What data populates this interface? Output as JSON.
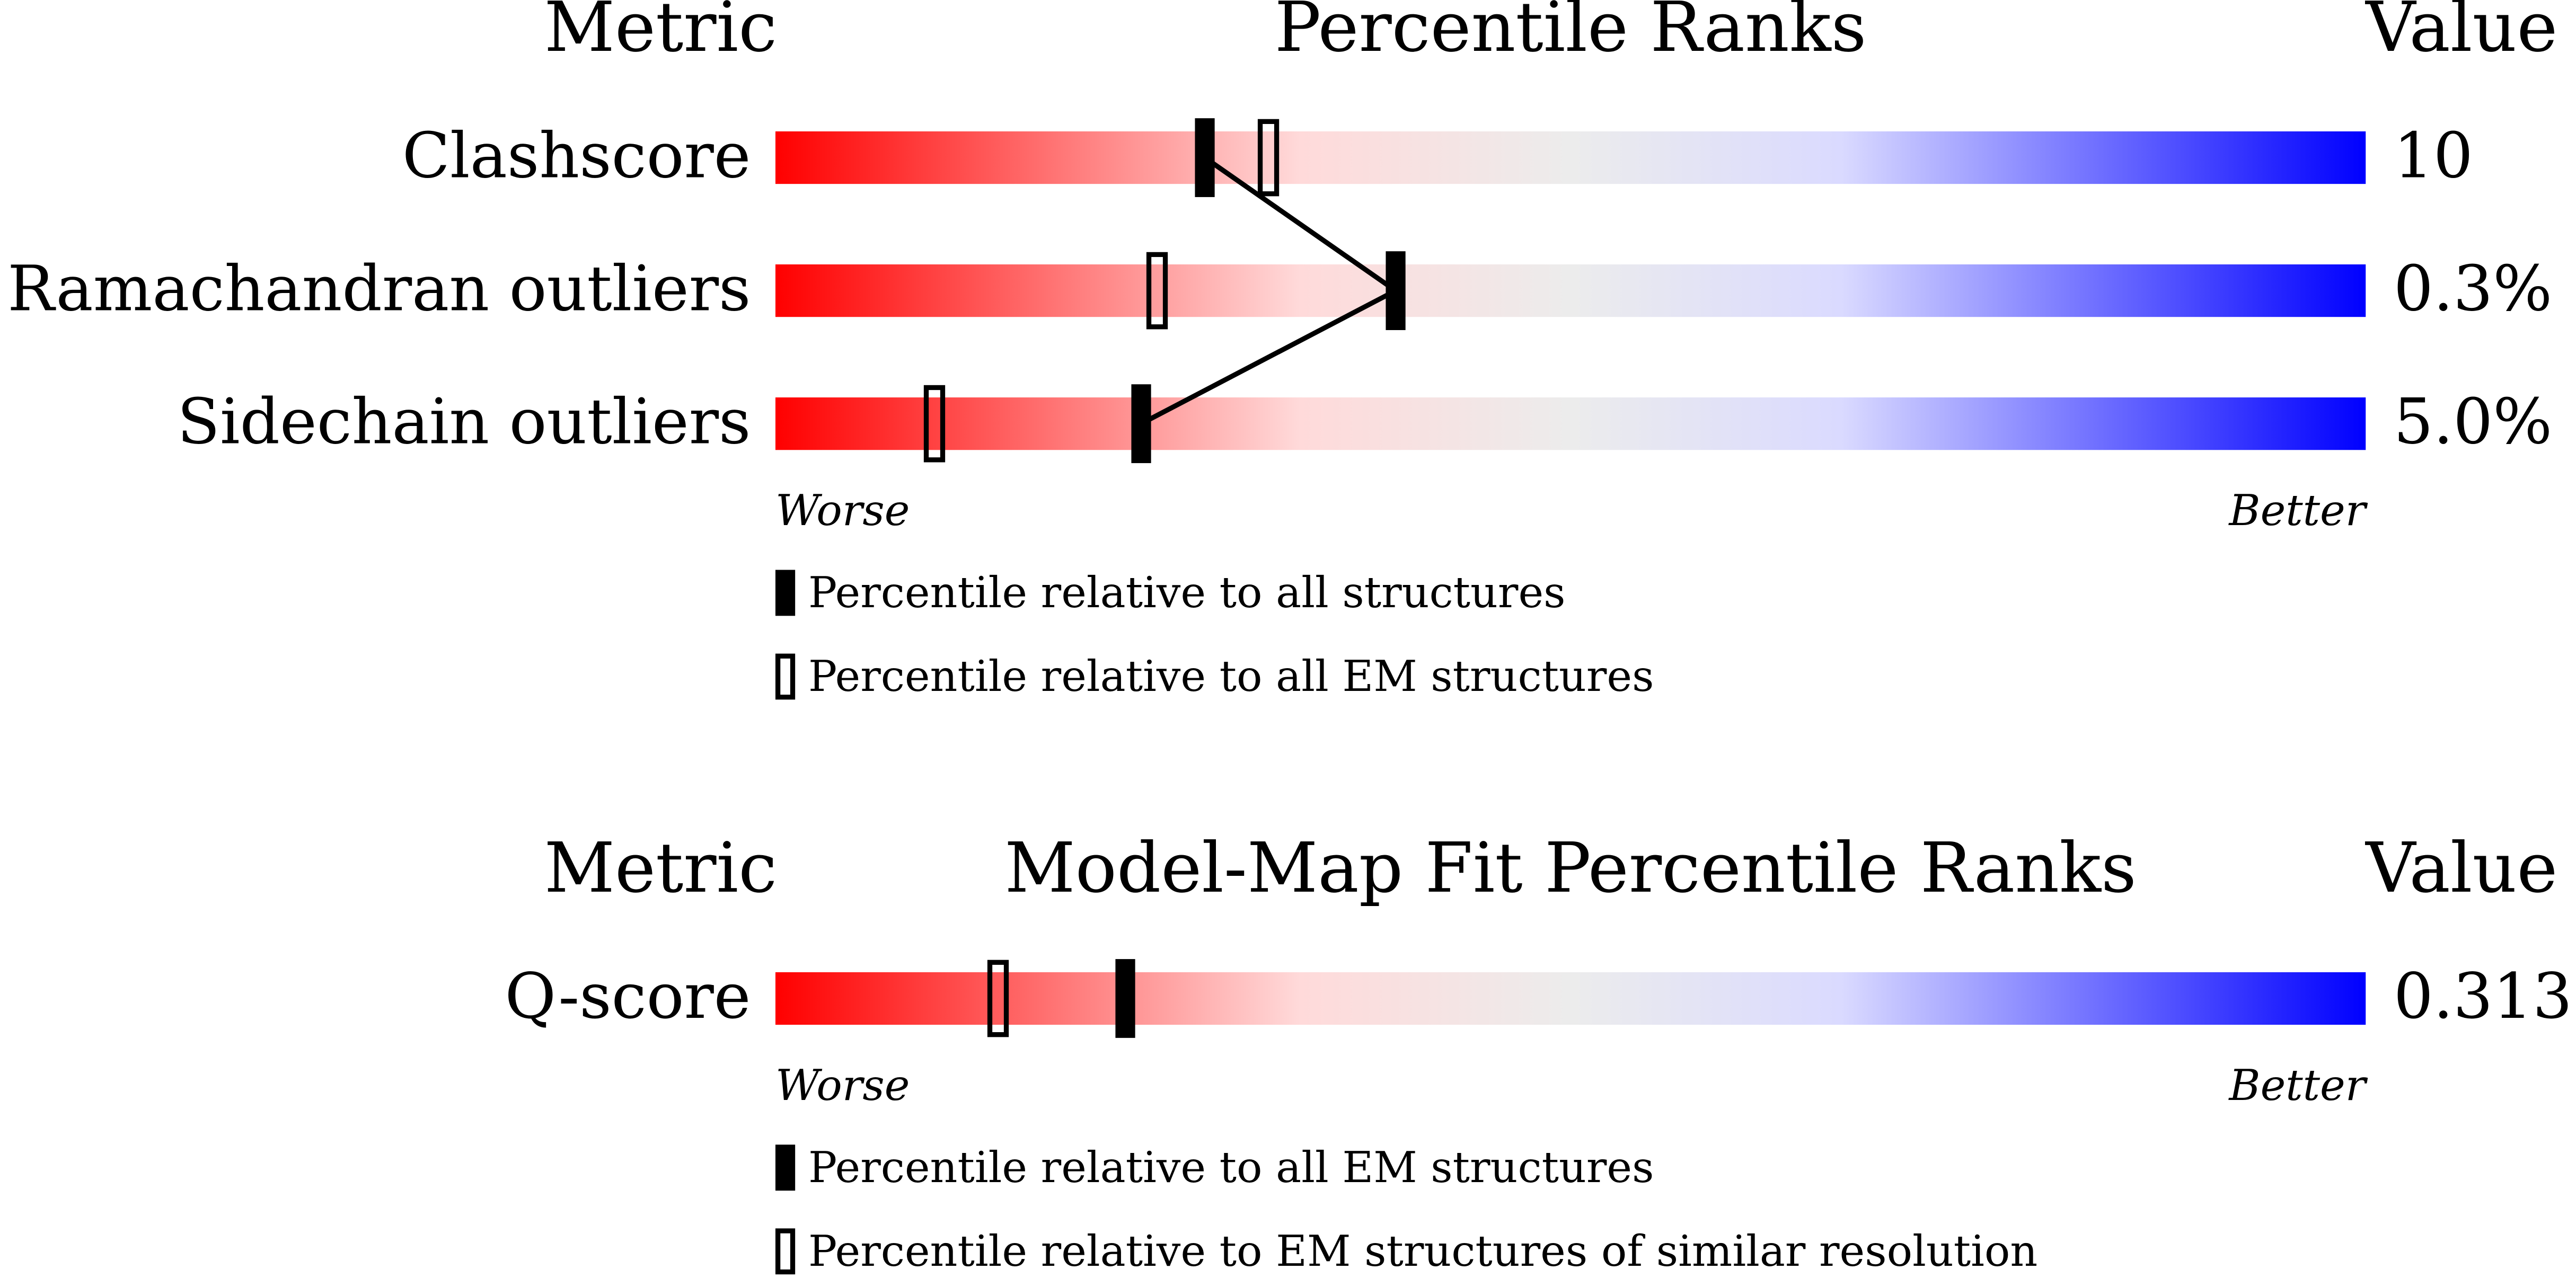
{
  "chart_data": [
    {
      "type": "percentile",
      "title_left": "Metric",
      "title": "Percentile Ranks",
      "title_right": "Value",
      "categories": [
        "Clashscore",
        "Ramachandran outliers",
        "Sidechain outliers"
      ],
      "value_labels": [
        "10",
        "0.3%",
        "5.0%"
      ],
      "xlim": [
        0,
        100
      ],
      "low_label": "Worse",
      "high_label": "Better",
      "series": [
        {
          "name": "Percentile relative to all structures",
          "style": "filled",
          "connected": true,
          "values": [
            27,
            39,
            23
          ]
        },
        {
          "name": "Percentile relative to all EM structures",
          "style": "open",
          "values": [
            31,
            24,
            10
          ]
        }
      ]
    },
    {
      "type": "percentile",
      "title_left": "Metric",
      "title": "Model-Map Fit Percentile Ranks",
      "title_right": "Value",
      "categories": [
        "Q-score"
      ],
      "value_labels": [
        "0.313"
      ],
      "xlim": [
        0,
        100
      ],
      "low_label": "Worse",
      "high_label": "Better",
      "series": [
        {
          "name": "Percentile relative to all EM structures",
          "style": "filled",
          "values": [
            22
          ]
        },
        {
          "name": "Percentile relative to EM structures of similar resolution",
          "style": "open",
          "values": [
            14
          ]
        }
      ]
    }
  ]
}
